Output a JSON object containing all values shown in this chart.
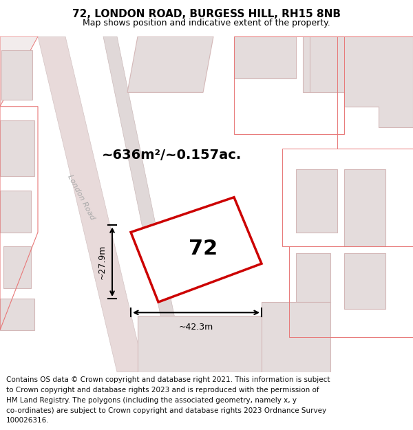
{
  "title_line1": "72, LONDON ROAD, BURGESS HILL, RH15 8NB",
  "title_line2": "Map shows position and indicative extent of the property.",
  "area_label": "~636m²/~0.157ac.",
  "width_label": "~42.3m",
  "height_label": "~27.9m",
  "number_label": "72",
  "road_label": "London Road",
  "map_bg": "#f9f6f6",
  "building_fill": "#e4dcdc",
  "building_stroke": "#d4b8b8",
  "road_fill": "#e8dada",
  "road_stroke": "#d4c4c4",
  "red_line": "#e87878",
  "property_stroke": "#cc0000",
  "property_fill": "#ffffff",
  "title_fontsize": 11,
  "subtitle_fontsize": 9,
  "footer_fontsize": 7.5,
  "road_label_color": "#aaaaaa",
  "footer_lines": [
    "Contains OS data © Crown copyright and database right 2021. This information is subject",
    "to Crown copyright and database rights 2023 and is reproduced with the permission of",
    "HM Land Registry. The polygons (including the associated geometry, namely x, y",
    "co-ordinates) are subject to Crown copyright and database rights 2023 Ordnance Survey",
    "100026316."
  ]
}
